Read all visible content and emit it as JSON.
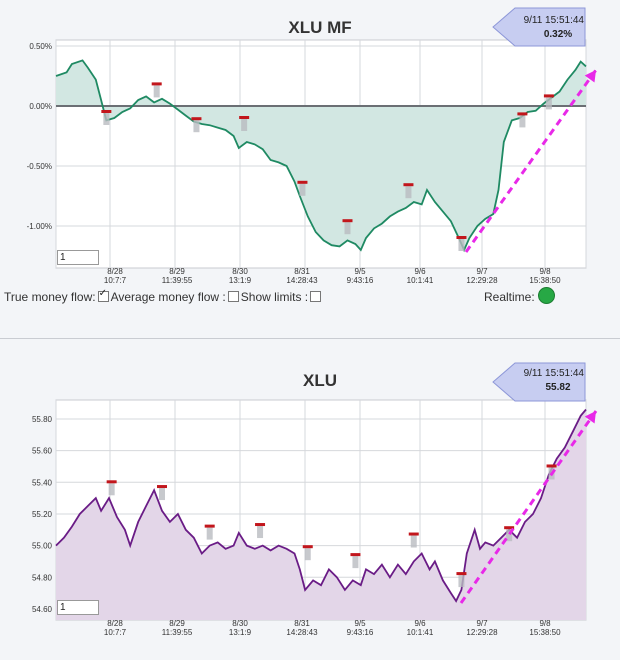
{
  "charts": [
    {
      "title": "XLU MF",
      "callout": {
        "time": "9/11 15:51:44",
        "value": "0.32%"
      },
      "input_value": "1"
    },
    {
      "title": "XLU",
      "callout": {
        "time": "9/11 15:51:44",
        "value": "55.82"
      },
      "input_value": "1"
    }
  ],
  "controls": {
    "true_money_flow": "True money flow:",
    "average_money_flow": "Average money flow :",
    "show_limits": "Show limits :",
    "realtime": "Realtime:"
  },
  "colors": {
    "mf_line": "#1f8a63",
    "mf_fill": "#d2e7e2",
    "price_line": "#6a1c86",
    "price_fill": "#e3d6e8",
    "trend_arrow": "#e829e8",
    "marker": "#c2161c",
    "realtime_dot": "#27a845"
  },
  "chart_data": [
    {
      "type": "area",
      "title": "XLU MF",
      "x_ticks": [
        {
          "l1": "8/28",
          "l2": "10:7:7"
        },
        {
          "l1": "8/29",
          "l2": "11:39:55"
        },
        {
          "l1": "8/30",
          "l2": "13:1:9"
        },
        {
          "l1": "8/31",
          "l2": "14:28:43"
        },
        {
          "l1": "9/5",
          "l2": "9:43:16"
        },
        {
          "l1": "9/6",
          "l2": "10:1:41"
        },
        {
          "l1": "9/7",
          "l2": "12:29:28"
        },
        {
          "l1": "9/8",
          "l2": "15:38:50"
        }
      ],
      "y_ticks": [
        "0.50%",
        "0.00%",
        "-0.50%",
        "-1.00%"
      ],
      "ylim": [
        -1.35,
        0.55
      ],
      "y_tick_values": [
        0.5,
        0.0,
        -0.5,
        -1.0
      ],
      "baseline": 0.0,
      "points": [
        [
          0,
          0.25
        ],
        [
          0.02,
          0.28
        ],
        [
          0.03,
          0.35
        ],
        [
          0.05,
          0.38
        ],
        [
          0.06,
          0.32
        ],
        [
          0.075,
          0.22
        ],
        [
          0.085,
          0.05
        ],
        [
          0.095,
          -0.12
        ],
        [
          0.11,
          -0.1
        ],
        [
          0.125,
          -0.05
        ],
        [
          0.14,
          -0.02
        ],
        [
          0.155,
          0.05
        ],
        [
          0.17,
          0.08
        ],
        [
          0.185,
          0.03
        ],
        [
          0.2,
          0.06
        ],
        [
          0.215,
          0.02
        ],
        [
          0.23,
          -0.03
        ],
        [
          0.245,
          -0.08
        ],
        [
          0.26,
          -0.13
        ],
        [
          0.275,
          -0.15
        ],
        [
          0.29,
          -0.16
        ],
        [
          0.305,
          -0.18
        ],
        [
          0.32,
          -0.2
        ],
        [
          0.335,
          -0.25
        ],
        [
          0.345,
          -0.35
        ],
        [
          0.36,
          -0.3
        ],
        [
          0.375,
          -0.32
        ],
        [
          0.39,
          -0.36
        ],
        [
          0.405,
          -0.45
        ],
        [
          0.42,
          -0.47
        ],
        [
          0.435,
          -0.5
        ],
        [
          0.45,
          -0.63
        ],
        [
          0.46,
          -0.75
        ],
        [
          0.475,
          -0.92
        ],
        [
          0.49,
          -1.05
        ],
        [
          0.505,
          -1.12
        ],
        [
          0.52,
          -1.16
        ],
        [
          0.535,
          -1.17
        ],
        [
          0.55,
          -1.12
        ],
        [
          0.565,
          -1.15
        ],
        [
          0.575,
          -1.2
        ],
        [
          0.585,
          -1.1
        ],
        [
          0.6,
          -1.02
        ],
        [
          0.615,
          -0.98
        ],
        [
          0.63,
          -0.92
        ],
        [
          0.645,
          -0.88
        ],
        [
          0.66,
          -0.85
        ],
        [
          0.675,
          -0.8
        ],
        [
          0.69,
          -0.82
        ],
        [
          0.7,
          -0.7
        ],
        [
          0.715,
          -0.8
        ],
        [
          0.73,
          -0.88
        ],
        [
          0.745,
          -0.96
        ],
        [
          0.76,
          -1.1
        ],
        [
          0.77,
          -1.2
        ],
        [
          0.78,
          -1.1
        ],
        [
          0.795,
          -1.0
        ],
        [
          0.81,
          -0.94
        ],
        [
          0.825,
          -0.9
        ],
        [
          0.835,
          -0.7
        ],
        [
          0.845,
          -0.3
        ],
        [
          0.86,
          -0.12
        ],
        [
          0.875,
          -0.1
        ],
        [
          0.89,
          -0.05
        ],
        [
          0.905,
          -0.04
        ],
        [
          0.92,
          0.02
        ],
        [
          0.935,
          0.07
        ],
        [
          0.95,
          0.12
        ],
        [
          0.965,
          0.22
        ],
        [
          0.98,
          0.3
        ],
        [
          0.99,
          0.37
        ],
        [
          1,
          0.33
        ]
      ],
      "markers": [
        [
          0.095,
          -0.05
        ],
        [
          0.19,
          0.18
        ],
        [
          0.265,
          -0.11
        ],
        [
          0.355,
          -0.1
        ],
        [
          0.465,
          -0.64
        ],
        [
          0.55,
          -0.96
        ],
        [
          0.665,
          -0.66
        ],
        [
          0.765,
          -1.1
        ],
        [
          0.88,
          -0.07
        ],
        [
          0.93,
          0.08
        ]
      ]
    },
    {
      "type": "area",
      "title": "XLU",
      "x_ticks": [
        {
          "l1": "8/28",
          "l2": "10:7:7"
        },
        {
          "l1": "8/29",
          "l2": "11:39:55"
        },
        {
          "l1": "8/30",
          "l2": "13:1:9"
        },
        {
          "l1": "8/31",
          "l2": "14:28:43"
        },
        {
          "l1": "9/5",
          "l2": "9:43:16"
        },
        {
          "l1": "9/6",
          "l2": "10:1:41"
        },
        {
          "l1": "9/7",
          "l2": "12:29:28"
        },
        {
          "l1": "9/8",
          "l2": "15:38:50"
        }
      ],
      "y_ticks": [
        "55.80",
        "55.60",
        "55.40",
        "55.20",
        "55.00",
        "54.80",
        "54.60"
      ],
      "ylim": [
        54.53,
        55.92
      ],
      "y_tick_values": [
        55.8,
        55.6,
        55.4,
        55.2,
        55.0,
        54.8,
        54.6
      ],
      "points": [
        [
          0,
          55.0
        ],
        [
          0.015,
          55.05
        ],
        [
          0.03,
          55.12
        ],
        [
          0.045,
          55.2
        ],
        [
          0.06,
          55.25
        ],
        [
          0.075,
          55.3
        ],
        [
          0.085,
          55.22
        ],
        [
          0.1,
          55.3
        ],
        [
          0.115,
          55.18
        ],
        [
          0.13,
          55.1
        ],
        [
          0.14,
          55.0
        ],
        [
          0.155,
          55.15
        ],
        [
          0.17,
          55.25
        ],
        [
          0.185,
          55.35
        ],
        [
          0.2,
          55.22
        ],
        [
          0.215,
          55.15
        ],
        [
          0.23,
          55.2
        ],
        [
          0.245,
          55.1
        ],
        [
          0.26,
          55.05
        ],
        [
          0.275,
          54.95
        ],
        [
          0.29,
          55.0
        ],
        [
          0.305,
          55.02
        ],
        [
          0.32,
          54.98
        ],
        [
          0.335,
          55.0
        ],
        [
          0.345,
          55.08
        ],
        [
          0.36,
          55.0
        ],
        [
          0.375,
          54.98
        ],
        [
          0.39,
          55.0
        ],
        [
          0.405,
          54.97
        ],
        [
          0.42,
          55.0
        ],
        [
          0.435,
          54.98
        ],
        [
          0.45,
          54.95
        ],
        [
          0.46,
          54.85
        ],
        [
          0.47,
          54.72
        ],
        [
          0.485,
          54.78
        ],
        [
          0.5,
          54.75
        ],
        [
          0.515,
          54.85
        ],
        [
          0.53,
          54.8
        ],
        [
          0.545,
          54.72
        ],
        [
          0.56,
          54.78
        ],
        [
          0.575,
          54.75
        ],
        [
          0.585,
          54.85
        ],
        [
          0.6,
          54.82
        ],
        [
          0.615,
          54.88
        ],
        [
          0.63,
          54.8
        ],
        [
          0.645,
          54.88
        ],
        [
          0.66,
          54.82
        ],
        [
          0.675,
          54.9
        ],
        [
          0.69,
          54.95
        ],
        [
          0.705,
          54.85
        ],
        [
          0.715,
          54.9
        ],
        [
          0.73,
          54.78
        ],
        [
          0.745,
          54.7
        ],
        [
          0.755,
          54.65
        ],
        [
          0.765,
          54.72
        ],
        [
          0.775,
          54.95
        ],
        [
          0.79,
          55.1
        ],
        [
          0.8,
          54.98
        ],
        [
          0.81,
          55.02
        ],
        [
          0.825,
          55.0
        ],
        [
          0.84,
          55.05
        ],
        [
          0.855,
          55.1
        ],
        [
          0.87,
          55.05
        ],
        [
          0.885,
          55.15
        ],
        [
          0.9,
          55.2
        ],
        [
          0.915,
          55.3
        ],
        [
          0.93,
          55.45
        ],
        [
          0.945,
          55.55
        ],
        [
          0.96,
          55.62
        ],
        [
          0.975,
          55.72
        ],
        [
          0.99,
          55.82
        ],
        [
          1,
          55.86
        ]
      ],
      "markers": [
        [
          0.105,
          55.4
        ],
        [
          0.2,
          55.37
        ],
        [
          0.29,
          55.12
        ],
        [
          0.385,
          55.13
        ],
        [
          0.475,
          54.99
        ],
        [
          0.565,
          54.94
        ],
        [
          0.675,
          55.07
        ],
        [
          0.765,
          54.82
        ],
        [
          0.855,
          55.11
        ],
        [
          0.935,
          55.5
        ]
      ]
    }
  ]
}
